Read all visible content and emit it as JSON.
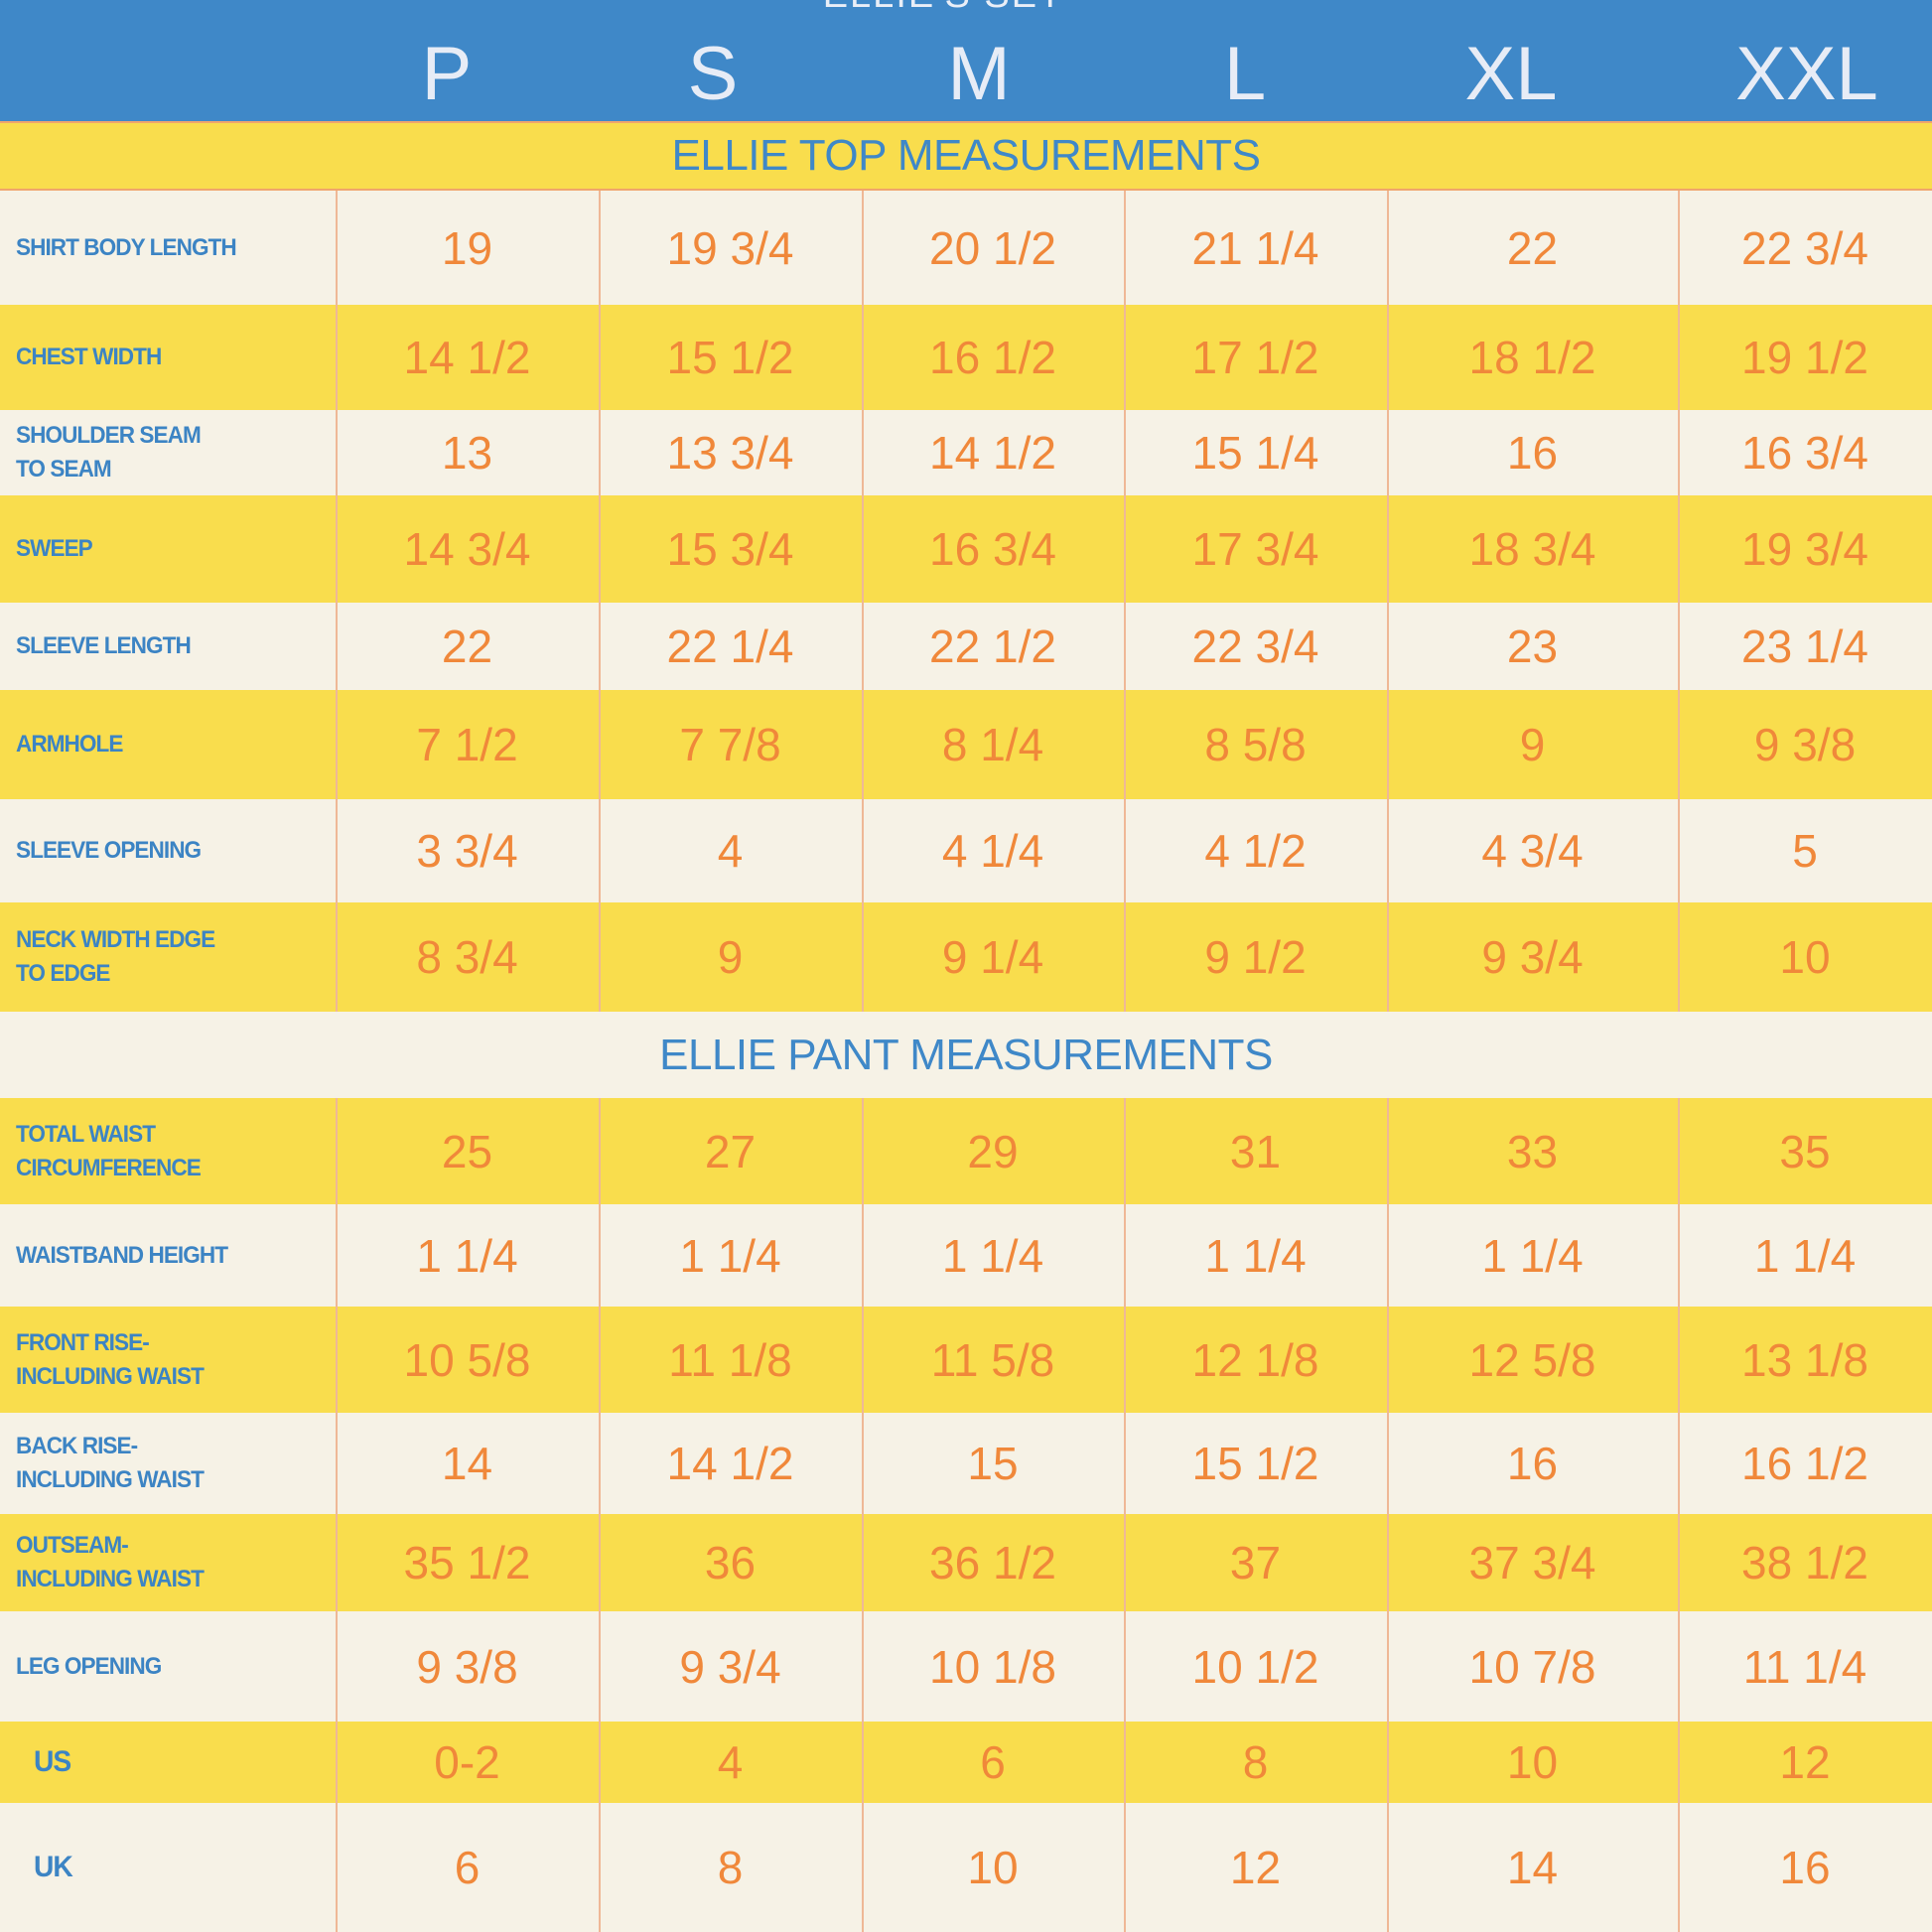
{
  "header": {
    "title": "ELLIE'S SET",
    "sizes": [
      "P",
      "S",
      "M",
      "L",
      "XL",
      "XXL"
    ]
  },
  "sections": {
    "top": {
      "title": "ELLIE TOP MEASUREMENTS",
      "rows": [
        {
          "label": "SHIRT BODY LENGTH",
          "values": [
            "19",
            "19  3/4",
            "20 1/2",
            "21 1/4",
            "22",
            "22 3/4"
          ]
        },
        {
          "label": "CHEST WIDTH",
          "values": [
            "14 1/2",
            "15 1/2",
            "16 1/2",
            "17 1/2",
            "18 1/2",
            "19 1/2"
          ]
        },
        {
          "label": "SHOULDER SEAM\nTO SEAM",
          "values": [
            "13",
            "13 3/4",
            "14 1/2",
            "15 1/4",
            "16",
            "16 3/4"
          ]
        },
        {
          "label": "SWEEP",
          "values": [
            "14 3/4",
            "15 3/4",
            "16 3/4",
            "17 3/4",
            "18 3/4",
            "19 3/4"
          ]
        },
        {
          "label": "SLEEVE LENGTH",
          "values": [
            "22",
            "22 1/4",
            "22 1/2",
            "22 3/4",
            "23",
            "23 1/4"
          ]
        },
        {
          "label": "ARMHOLE",
          "values": [
            "7 1/2",
            "7 7/8",
            "8 1/4",
            "8 5/8",
            "9",
            "9 3/8"
          ]
        },
        {
          "label": "SLEEVE OPENING",
          "values": [
            "3 3/4",
            "4",
            "4 1/4",
            "4 1/2",
            "4 3/4",
            "5"
          ]
        },
        {
          "label": "NECK WIDTH EDGE\nTO EDGE",
          "values": [
            "8 3/4",
            "9",
            "9 1/4",
            "9 1/2",
            "9 3/4",
            "10"
          ]
        }
      ]
    },
    "pant": {
      "title": "ELLIE PANT MEASUREMENTS",
      "rows": [
        {
          "label": "TOTAL WAIST\nCIRCUMFERENCE",
          "values": [
            "25",
            "27",
            "29",
            "31",
            "33",
            "35"
          ]
        },
        {
          "label": "WAISTBAND HEIGHT",
          "values": [
            "1 1/4",
            "1 1/4",
            "1 1/4",
            "1 1/4",
            "1 1/4",
            "1 1/4"
          ]
        },
        {
          "label": "FRONT RISE-\nINCLUDING WAIST",
          "values": [
            "10 5/8",
            "11 1/8",
            "11 5/8",
            "12 1/8",
            "12 5/8",
            "13 1/8"
          ]
        },
        {
          "label": "BACK RISE-\nINCLUDING WAIST",
          "values": [
            "14",
            "14 1/2",
            "15",
            "15 1/2",
            "16",
            "16 1/2"
          ]
        },
        {
          "label": "OUTSEAM-\nINCLUDING WAIST",
          "values": [
            "35 1/2",
            "36",
            "36 1/2",
            "37",
            "37 3/4",
            "38 1/2"
          ]
        },
        {
          "label": "LEG OPENING",
          "values": [
            "9 3/8",
            "9 3/4",
            "10 1/8",
            "10 1/2",
            "10 7/8",
            "11 1/4"
          ]
        },
        {
          "label": "US",
          "values": [
            "0-2",
            "4",
            "6",
            "8",
            "10",
            "12"
          ]
        },
        {
          "label": "UK",
          "values": [
            "6",
            "8",
            "10",
            "12",
            "14",
            "16"
          ]
        }
      ]
    }
  },
  "colors": {
    "header_blue": "#3f88c8",
    "row_yellow": "#f9dd4d",
    "row_cream": "#f6f2e6",
    "value_orange": "#f0883a",
    "label_blue": "#3c84c4"
  }
}
